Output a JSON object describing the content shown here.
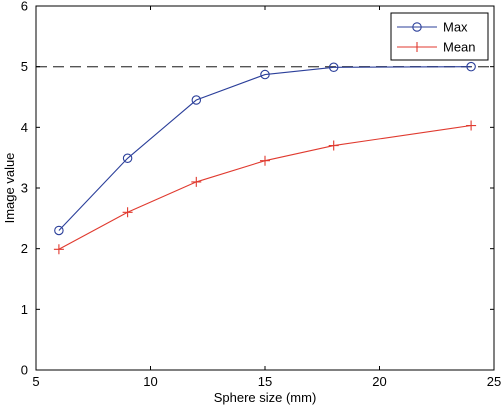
{
  "chart_data": {
    "type": "line",
    "xlabel": "Sphere size (mm)",
    "ylabel": "Image value",
    "xlim": [
      5,
      25
    ],
    "ylim": [
      0,
      6
    ],
    "xticks": [
      5,
      10,
      15,
      20,
      25
    ],
    "yticks": [
      0,
      1,
      2,
      3,
      4,
      5,
      6
    ],
    "grid": false,
    "legend_position": "top-right",
    "reference_line": {
      "y": 5,
      "style": "dashed",
      "color": "#555555"
    },
    "series": [
      {
        "name": "Max",
        "color": "#2b3f9a",
        "marker": "circle",
        "x": [
          6,
          9,
          12,
          15,
          18,
          24
        ],
        "y": [
          2.3,
          3.49,
          4.45,
          4.87,
          4.99,
          5.0
        ]
      },
      {
        "name": "Mean",
        "color": "#e03a2f",
        "marker": "plus",
        "x": [
          6,
          9,
          12,
          15,
          18,
          24
        ],
        "y": [
          1.99,
          2.6,
          3.1,
          3.45,
          3.7,
          4.03
        ]
      }
    ]
  }
}
